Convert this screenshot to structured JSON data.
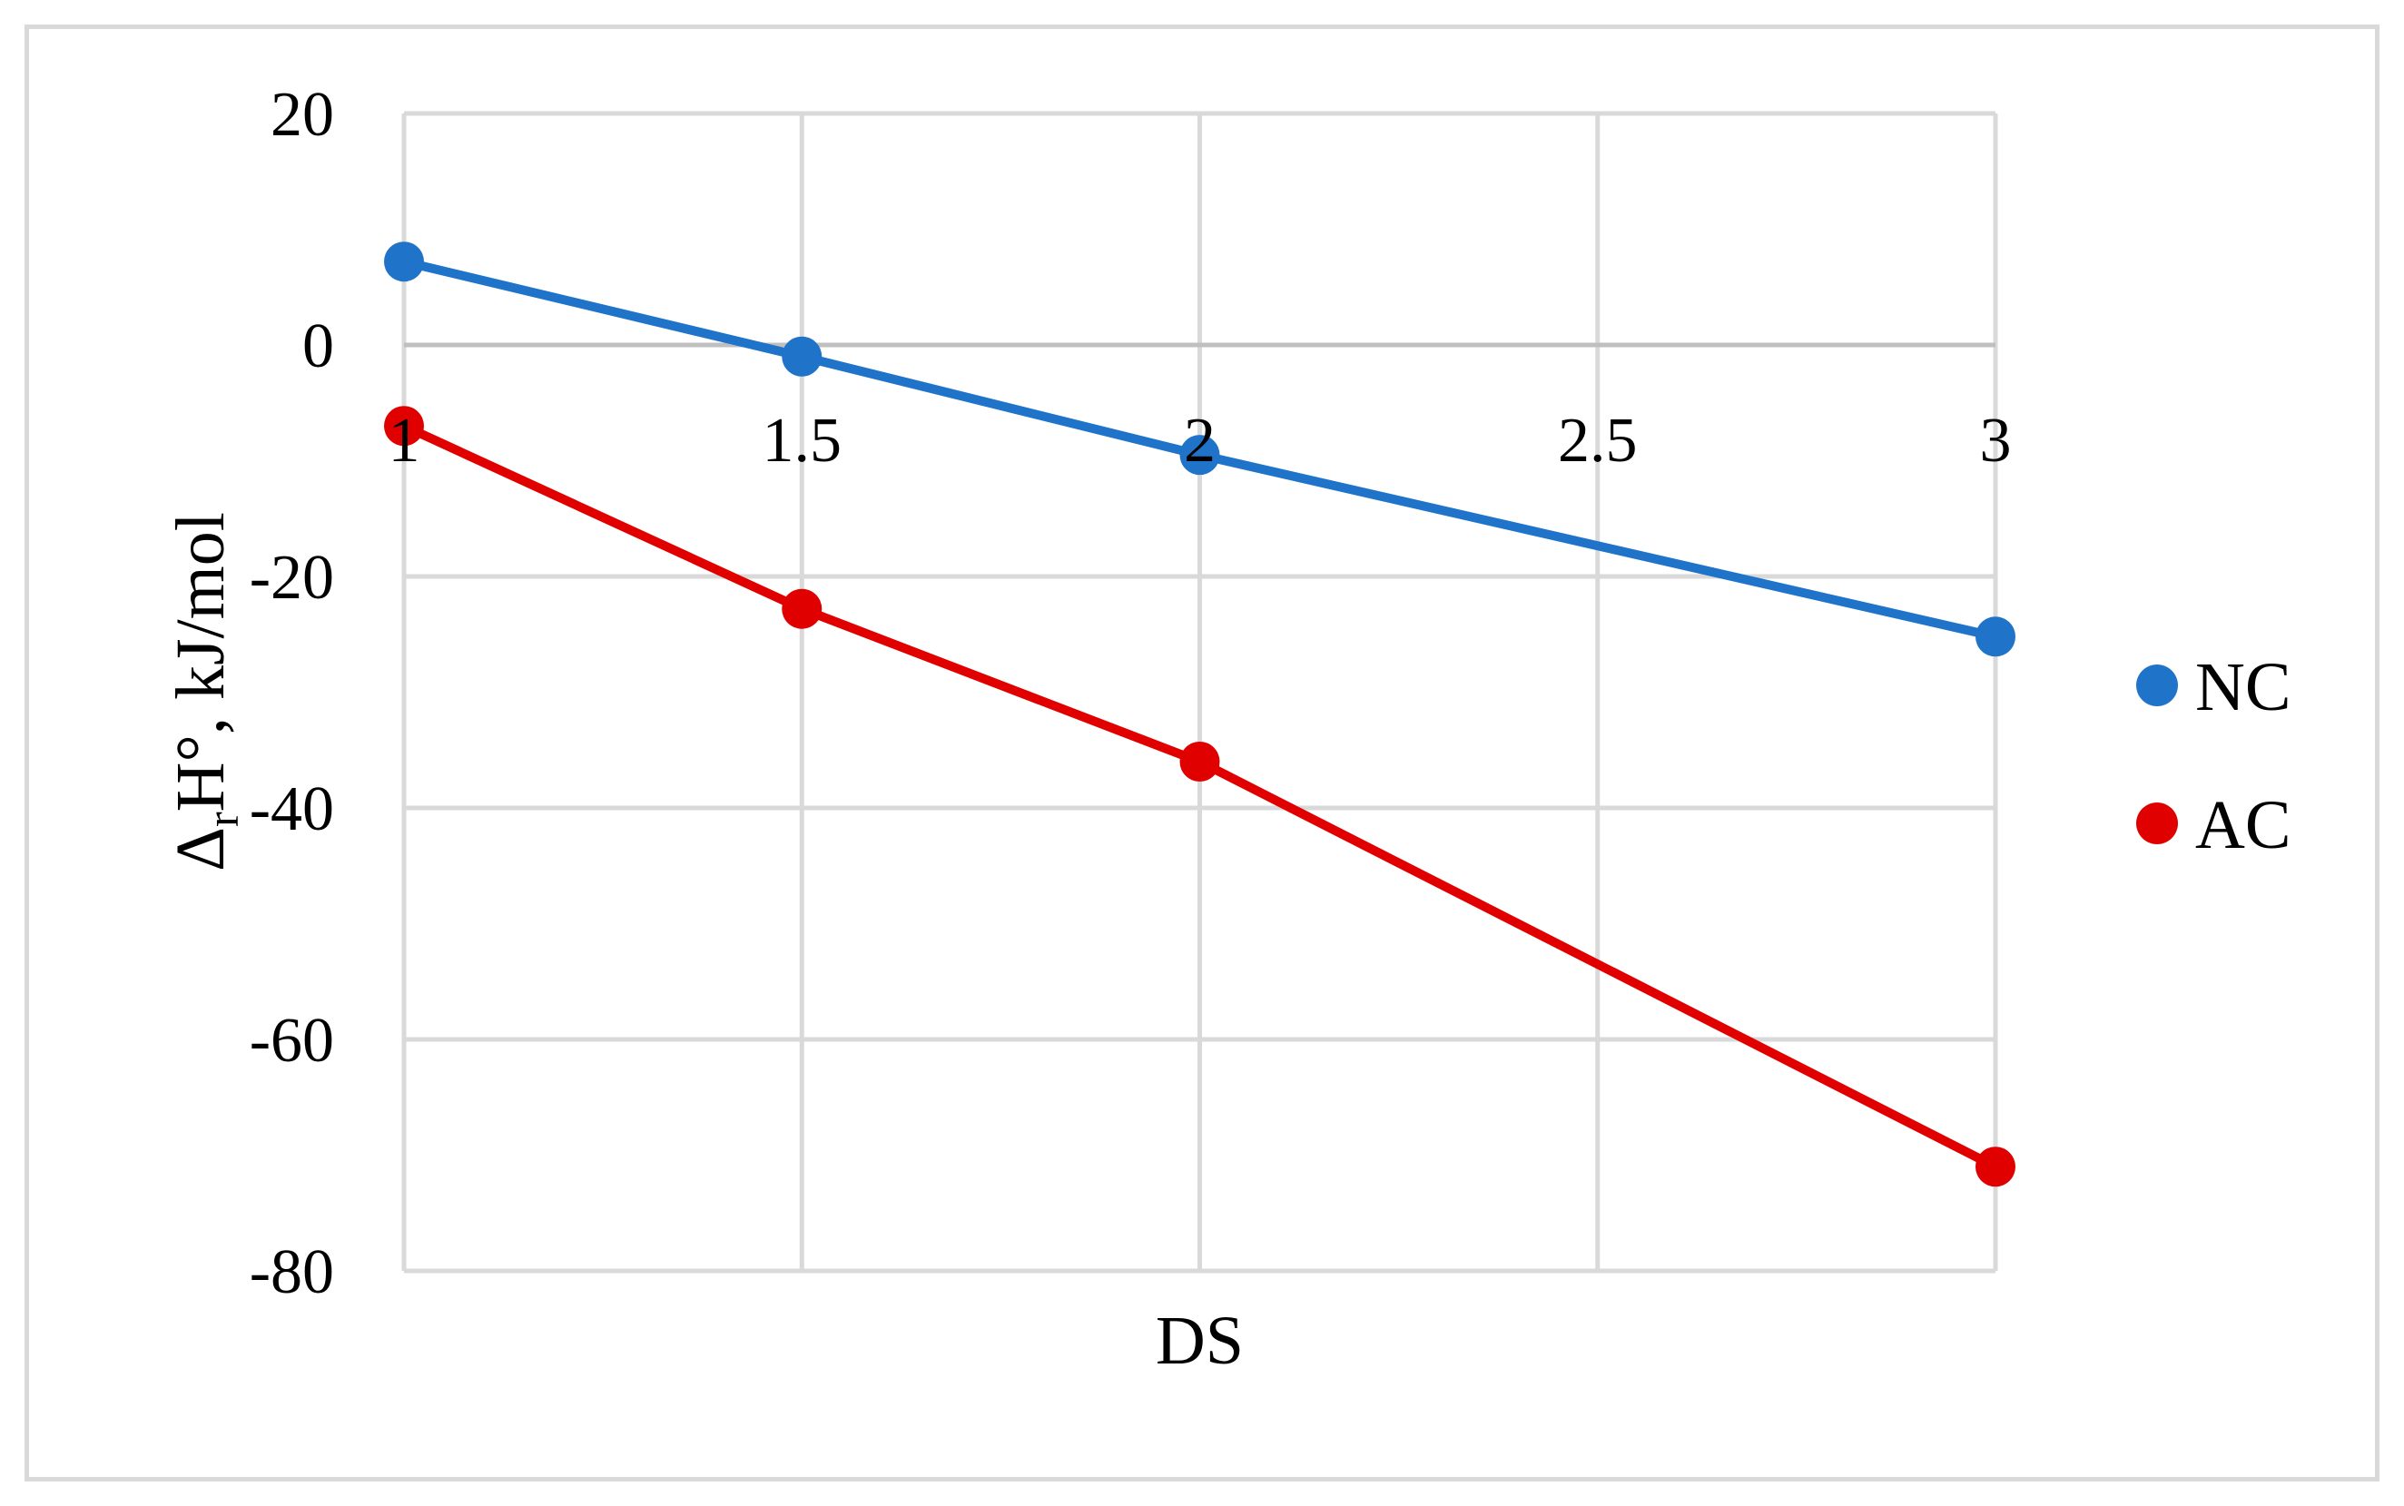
{
  "chart_data": {
    "type": "line",
    "title": "",
    "xlabel": "DS",
    "ylabel": {
      "delta": "Δ",
      "subscript": "r",
      "rest": "H°, kJ/mol"
    },
    "x_axis_type": "category",
    "categories": [
      "1",
      "1.5",
      "2",
      "2.5",
      "3"
    ],
    "xlim": [
      1,
      3
    ],
    "ylim": [
      -80,
      20
    ],
    "ytick_values": [
      20,
      0,
      -20,
      -40,
      -60,
      -80
    ],
    "ytick_labels": [
      "20",
      "0",
      "-20",
      "-40",
      "-60",
      "-80"
    ],
    "grid": true,
    "legend_position": "right",
    "series": [
      {
        "name": "NC",
        "color": "#1f73c9",
        "points": [
          {
            "x": 1,
            "y": 7.2
          },
          {
            "x": 1.5,
            "y": -1
          },
          {
            "x": 2,
            "y": -9.5
          },
          {
            "x": 3,
            "y": -25.2
          }
        ]
      },
      {
        "name": "AC",
        "color": "#e00000",
        "points": [
          {
            "x": 1,
            "y": -7
          },
          {
            "x": 1.5,
            "y": -22.8
          },
          {
            "x": 2,
            "y": -36
          },
          {
            "x": 3,
            "y": -71
          }
        ]
      }
    ]
  }
}
